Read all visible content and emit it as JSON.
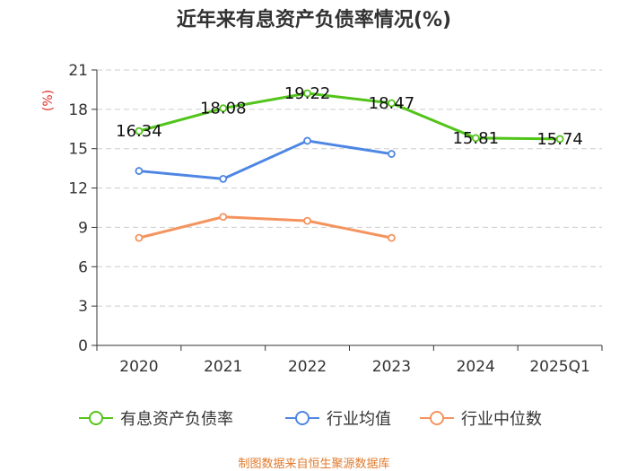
{
  "chart_data": {
    "type": "line",
    "title": "近年来有息资产负债率情况(%)",
    "ylabel": "(%)",
    "categories": [
      "2020",
      "2021",
      "2022",
      "2023",
      "2024",
      "2025Q1"
    ],
    "ylim": [
      0,
      21
    ],
    "yticks": [
      0,
      3,
      6,
      9,
      12,
      15,
      18,
      21
    ],
    "grid": true,
    "legend_position": "bottom",
    "series": [
      {
        "name": "有息资产负债率",
        "color": "#52c41a",
        "values": [
          16.34,
          18.08,
          19.22,
          18.47,
          15.81,
          15.74
        ],
        "labels": [
          "16.34",
          "18.08",
          "19.22",
          "18.47",
          "15.81",
          "15.74"
        ]
      },
      {
        "name": "行业均值",
        "color": "#4e86e4",
        "values": [
          13.3,
          12.7,
          15.6,
          14.6,
          null,
          null
        ]
      },
      {
        "name": "行业中位数",
        "color": "#f5935e",
        "values": [
          8.2,
          9.8,
          9.5,
          8.2,
          null,
          null
        ]
      }
    ],
    "source": "制图数据来自恒生聚源数据库"
  },
  "colors": {
    "axis": "#333333",
    "grid": "#cccccc",
    "unit_label": "#e0312e",
    "source": "#e07a2c"
  }
}
